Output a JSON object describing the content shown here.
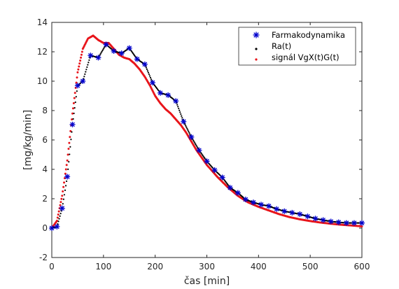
{
  "chart_data": {
    "type": "line",
    "title": "",
    "xlabel": "čas [min]",
    "ylabel": "[mg/kg/min]",
    "xlim": [
      0,
      600
    ],
    "ylim": [
      -2,
      14
    ],
    "x_ticks": [
      0,
      100,
      200,
      300,
      400,
      500,
      600
    ],
    "y_ticks": [
      -2,
      0,
      2,
      4,
      6,
      8,
      10,
      12,
      14
    ],
    "grid": false,
    "legend_position": "top-right",
    "series": [
      {
        "name": "Farmakodynamika",
        "style": "star-markers",
        "color": "#0000cc",
        "x": [
          0,
          10,
          20,
          30,
          40,
          50,
          60,
          75,
          90,
          105,
          120,
          135,
          150,
          165,
          180,
          195,
          210,
          225,
          240,
          255,
          270,
          285,
          300,
          315,
          330,
          345,
          360,
          375,
          390,
          405,
          420,
          435,
          450,
          465,
          480,
          495,
          510,
          525,
          540,
          555,
          570,
          585,
          600
        ],
        "values": [
          0.0,
          0.1,
          1.35,
          3.5,
          7.05,
          9.7,
          10.0,
          11.75,
          11.6,
          12.5,
          12.05,
          11.9,
          12.25,
          11.5,
          11.15,
          9.9,
          9.2,
          9.05,
          8.65,
          7.25,
          6.2,
          5.3,
          4.55,
          3.95,
          3.45,
          2.75,
          2.4,
          1.95,
          1.75,
          1.6,
          1.5,
          1.3,
          1.15,
          1.05,
          0.95,
          0.8,
          0.65,
          0.55,
          0.45,
          0.4,
          0.35,
          0.35,
          0.35
        ]
      },
      {
        "name": "Ra(t)",
        "style": "black-dotted-line",
        "color": "#000000",
        "x": [
          0,
          10,
          20,
          30,
          40,
          50,
          60,
          75,
          90,
          105,
          120,
          135,
          150,
          165,
          180,
          195,
          210,
          225,
          240,
          255,
          270,
          285,
          300,
          315,
          330,
          345,
          360,
          375,
          390,
          405,
          420,
          435,
          450,
          465,
          480,
          495,
          510,
          525,
          540,
          555,
          570,
          585,
          600
        ],
        "values": [
          0.0,
          0.1,
          1.35,
          3.5,
          7.05,
          9.7,
          10.0,
          11.75,
          11.6,
          12.5,
          12.05,
          11.9,
          12.25,
          11.5,
          11.15,
          9.9,
          9.2,
          9.05,
          8.65,
          7.25,
          6.2,
          5.3,
          4.55,
          3.95,
          3.45,
          2.75,
          2.4,
          1.95,
          1.75,
          1.6,
          1.5,
          1.3,
          1.15,
          1.05,
          0.95,
          0.8,
          0.65,
          0.55,
          0.45,
          0.4,
          0.35,
          0.35,
          0.35
        ]
      },
      {
        "name": "signál VgX(t)G(t)",
        "style": "red-dotted-line",
        "color": "#e8141a",
        "x": [
          0,
          10,
          20,
          30,
          40,
          50,
          60,
          70,
          80,
          90,
          100,
          110,
          120,
          130,
          140,
          150,
          160,
          170,
          180,
          190,
          200,
          210,
          220,
          230,
          240,
          250,
          260,
          270,
          280,
          290,
          300,
          320,
          340,
          360,
          380,
          400,
          420,
          440,
          460,
          480,
          500,
          520,
          540,
          560,
          580,
          600
        ],
        "values": [
          0.0,
          0.5,
          2.2,
          4.6,
          7.8,
          10.6,
          12.2,
          12.9,
          13.1,
          12.8,
          12.6,
          12.6,
          12.2,
          11.8,
          11.6,
          11.5,
          11.2,
          10.8,
          10.3,
          9.7,
          9.0,
          8.5,
          8.1,
          7.8,
          7.4,
          7.0,
          6.5,
          5.9,
          5.3,
          4.8,
          4.3,
          3.5,
          2.8,
          2.2,
          1.75,
          1.45,
          1.2,
          0.95,
          0.75,
          0.6,
          0.48,
          0.38,
          0.3,
          0.23,
          0.18,
          0.12
        ]
      }
    ]
  }
}
